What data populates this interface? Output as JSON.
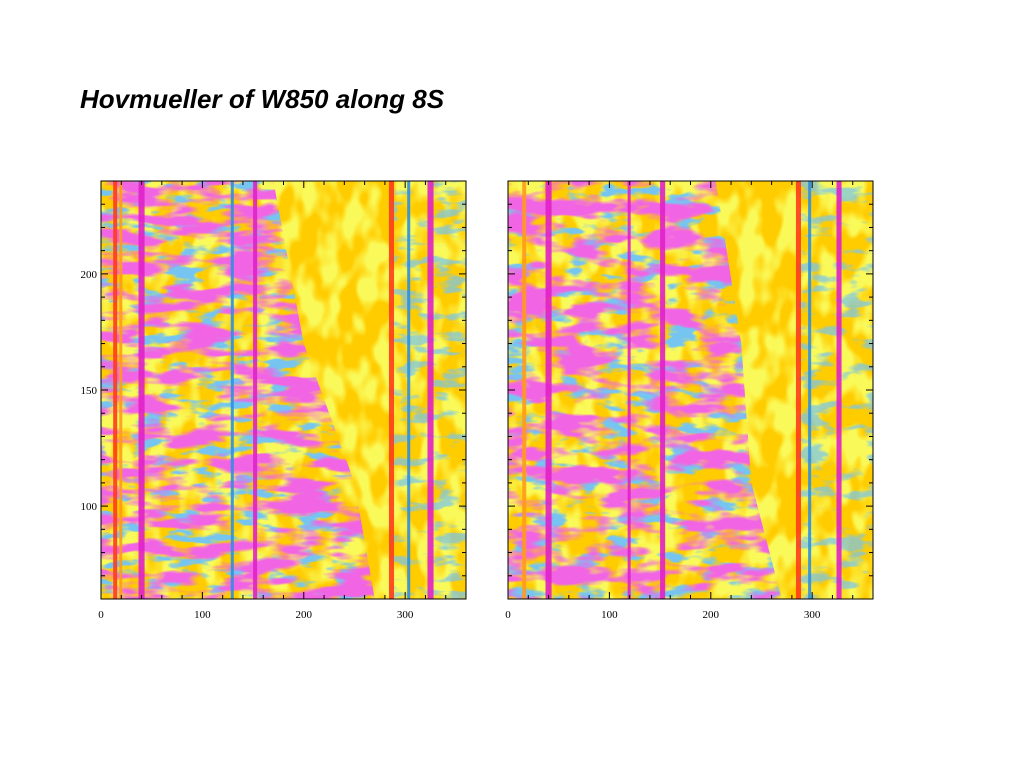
{
  "slide": {
    "title": "Hovmueller of W850 along 8S"
  },
  "colors": {
    "background": "#ffffff",
    "frame": "#000000",
    "levels": [
      "#1e1e1e",
      "#e020c8",
      "#7b6bc4",
      "#2e8fe0",
      "#f2f21a",
      "#ffcc00",
      "#ff9a1a",
      "#ff3b1a"
    ]
  },
  "chart_data": [
    {
      "type": "heatmap",
      "title": "",
      "xlabel": "",
      "ylabel": "",
      "xlim": [
        0,
        360
      ],
      "ylim": [
        60,
        240
      ],
      "xticks": [
        0,
        100,
        200,
        300
      ],
      "xtick_labels": [
        "0",
        "100",
        "200",
        "300"
      ],
      "yticks": [
        100,
        150,
        200
      ],
      "ytick_labels": [
        "100",
        "150",
        "200"
      ],
      "grid": false,
      "legend": "none",
      "features": {
        "vertical_bands": [
          {
            "x": 12,
            "width": 4,
            "level": "red"
          },
          {
            "x": 18,
            "width": 3,
            "level": "orange"
          },
          {
            "x": 37,
            "width": 6,
            "level": "magenta"
          },
          {
            "x": 128,
            "width": 3,
            "level": "blue"
          },
          {
            "x": 150,
            "width": 4,
            "level": "magenta"
          },
          {
            "x": 284,
            "width": 5,
            "level": "red"
          },
          {
            "x": 302,
            "width": 3,
            "level": "blue"
          },
          {
            "x": 322,
            "width": 6,
            "level": "magenta"
          }
        ],
        "left_panel_variant": 1
      }
    },
    {
      "type": "heatmap",
      "title": "",
      "xlabel": "",
      "ylabel": "",
      "xlim": [
        0,
        360
      ],
      "ylim": [
        60,
        240
      ],
      "xticks": [
        0,
        100,
        200,
        300
      ],
      "xtick_labels": [
        "0",
        "100",
        "200",
        "300"
      ],
      "yticks": [],
      "ytick_labels": [],
      "grid": false,
      "legend": "none",
      "features": {
        "vertical_bands": [
          {
            "x": 14,
            "width": 4,
            "level": "orange"
          },
          {
            "x": 37,
            "width": 6,
            "level": "magenta"
          },
          {
            "x": 118,
            "width": 3,
            "level": "magenta"
          },
          {
            "x": 150,
            "width": 5,
            "level": "magenta"
          },
          {
            "x": 284,
            "width": 5,
            "level": "red"
          },
          {
            "x": 296,
            "width": 3,
            "level": "blue"
          },
          {
            "x": 324,
            "width": 5,
            "level": "magenta"
          }
        ],
        "left_panel_variant": 2
      }
    }
  ]
}
